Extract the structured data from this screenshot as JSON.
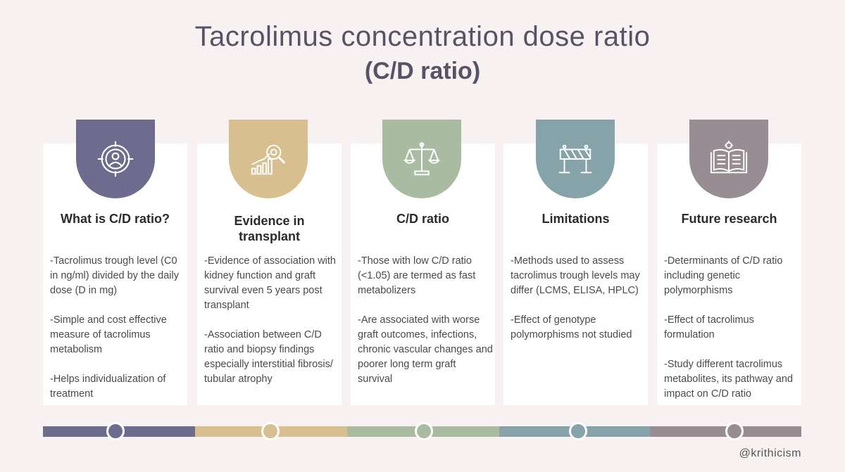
{
  "header": {
    "title": "Tacrolimus concentration dose ratio",
    "subtitle": "(C/D ratio)"
  },
  "colors": {
    "background": "#f7f2f1",
    "purple": "#6e6c8e",
    "tan": "#d7bf8f",
    "sage": "#a9bba0",
    "teal": "#86a3aa",
    "mauve": "#978d93"
  },
  "cards": [
    {
      "title": "What is C/D ratio?",
      "icon": "target-person-icon",
      "paragraphs": [
        "-Tacrolimus trough level (C0 in ng/ml) divided by the daily dose (D in mg)",
        "-Simple and cost effective measure of tacrolimus metabolism",
        "-Helps individualization of treatment"
      ]
    },
    {
      "title": "Evidence in transplant",
      "icon": "chart-magnifier-icon",
      "paragraphs": [
        "-Evidence of association with kidney function and graft survival even 5 years post transplant",
        "-Association between C/D ratio and biopsy findings especially interstitial fibrosis/ tubular atrophy"
      ]
    },
    {
      "title": "C/D ratio",
      "icon": "balance-scale-icon",
      "paragraphs": [
        "-Those with low C/D ratio (<1.05) are termed as fast metabolizers",
        "-Are associated with worse graft outcomes, infections, chronic vascular changes and poorer long term graft survival"
      ]
    },
    {
      "title": "Limitations",
      "icon": "road-barrier-icon",
      "paragraphs": [
        "-Methods used to assess tacrolimus trough levels may differ (LCMS, ELISA, HPLC)",
        "-Effect of genotype polymorphisms not studied"
      ]
    },
    {
      "title": "Future research",
      "icon": "open-book-gear-icon",
      "paragraphs": [
        "-Determinants of C/D ratio including genetic polymorphisms",
        "-Effect of tacrolimus formulation",
        "-Study different tacrolimus metabolites, its pathway and impact on C/D ratio"
      ]
    }
  ],
  "footer": {
    "handle": "@krithicism"
  }
}
